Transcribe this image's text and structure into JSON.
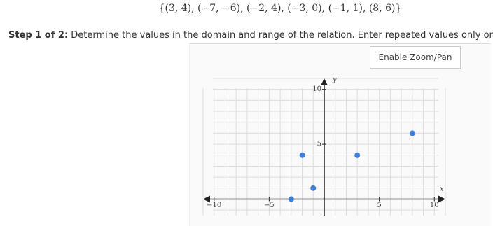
{
  "header": {
    "relation": "{(3, 4), (−7, −6), (−2, 4), (−3, 0), (−1, 1), (8, 6)}"
  },
  "step": {
    "label": "Step 1 of 2:",
    "instruction": "Determine the values in the domain and range of the relation. Enter repeated values only once."
  },
  "button": {
    "label": "Enable Zoom/Pan"
  },
  "graph": {
    "x_label": "x",
    "y_label": "y",
    "xlim": [
      -11,
      11
    ],
    "ylim": [
      -1.5,
      11
    ],
    "xticks": [
      {
        "value": -10,
        "label": "−10"
      },
      {
        "value": -5,
        "label": "−5"
      },
      5,
      10
    ],
    "yticks": [
      5,
      10
    ],
    "points": [
      {
        "x": 8,
        "y": 6
      },
      {
        "x": 3,
        "y": 4
      },
      {
        "x": -2,
        "y": 4
      },
      {
        "x": -1,
        "y": 1
      },
      {
        "x": -3,
        "y": 0
      }
    ],
    "color": "#3f7fd8"
  }
}
